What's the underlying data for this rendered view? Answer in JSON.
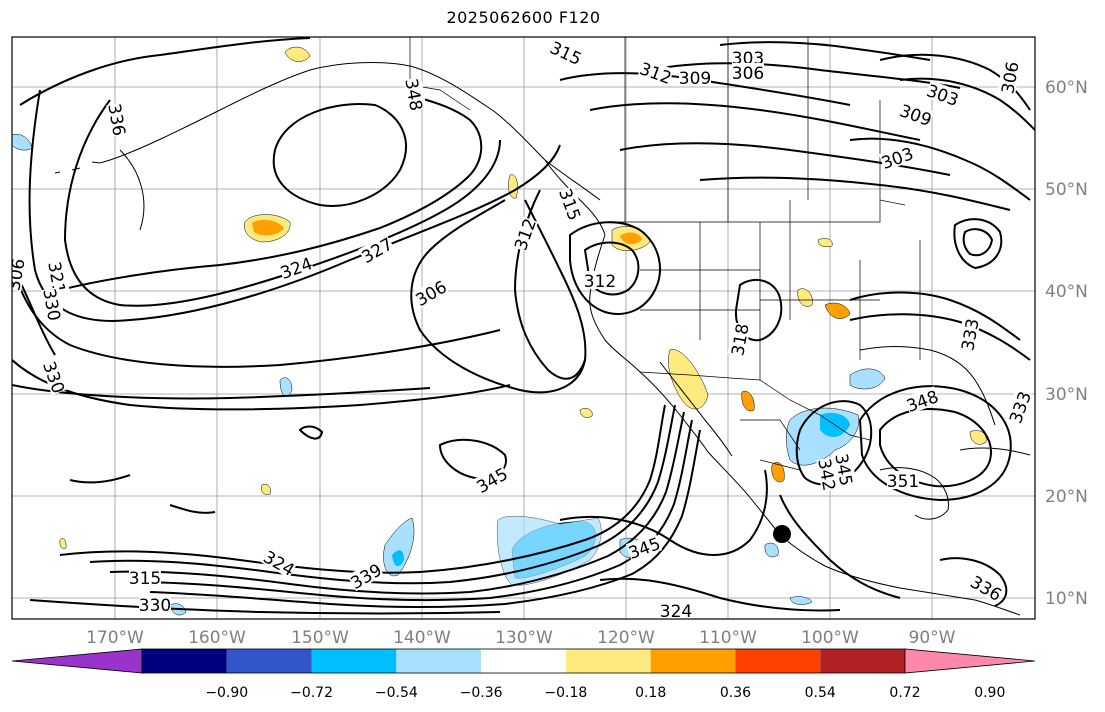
{
  "title": "2025062600 F120",
  "colors": {
    "grid": "#9a9a9a",
    "coast": "#000000",
    "contour": "#000000",
    "axis_label": "#808080"
  },
  "lat_labels": [
    "60°N",
    "50°N",
    "40°N",
    "30°N",
    "20°N",
    "10°N"
  ],
  "lon_labels": [
    "170°W",
    "160°W",
    "150°W",
    "140°W",
    "130°W",
    "120°W",
    "110°W",
    "100°W",
    "90°W"
  ],
  "contour_labels": [
    "315",
    "303",
    "306",
    "312",
    "309",
    "303",
    "306",
    "309",
    "303",
    "306",
    "321",
    "330",
    "324",
    "327",
    "306",
    "312",
    "315",
    "312",
    "318",
    "333",
    "330",
    "345",
    "324",
    "315",
    "330",
    "339",
    "345",
    "324",
    "342",
    "345",
    "351",
    "348",
    "333",
    "336",
    "336",
    "348"
  ],
  "colorbar": {
    "colors": [
      "#9933cc",
      "#000080",
      "#3355cc",
      "#00bfff",
      "#aae0ff",
      "#ffffff",
      "#ffea80",
      "#ffa000",
      "#ff4000",
      "#b22222",
      "#ff88aa"
    ],
    "tick_labels": [
      "−0.90",
      "−0.72",
      "−0.54",
      "−0.36",
      "−0.18",
      "0.18",
      "0.36",
      "0.54",
      "0.72",
      "0.90"
    ]
  },
  "marker": {
    "name": "storm-center",
    "color": "#000000"
  }
}
